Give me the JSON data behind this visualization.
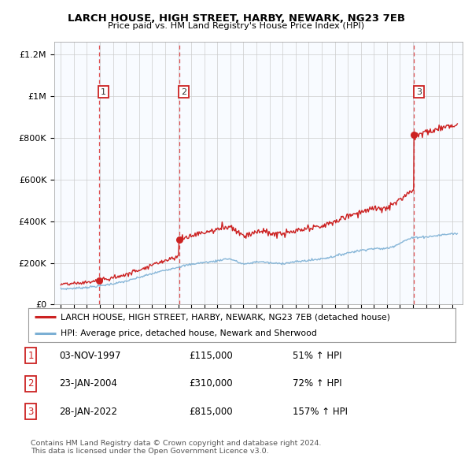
{
  "title": "LARCH HOUSE, HIGH STREET, HARBY, NEWARK, NG23 7EB",
  "subtitle": "Price paid vs. HM Land Registry's House Price Index (HPI)",
  "ylabel_ticks": [
    "£0",
    "£200K",
    "£400K",
    "£600K",
    "£800K",
    "£1M",
    "£1.2M"
  ],
  "ytick_values": [
    0,
    200000,
    400000,
    600000,
    800000,
    1000000,
    1200000
  ],
  "ylim": [
    0,
    1280000
  ],
  "sale_dates": [
    1997.92,
    2004.07,
    2022.08
  ],
  "sale_prices": [
    115000,
    310000,
    815000
  ],
  "sale_labels": [
    "1",
    "2",
    "3"
  ],
  "hpi_color": "#7bafd4",
  "price_color": "#cc2222",
  "dashed_line_color": "#dd3333",
  "shade_color": "#ddeeff",
  "legend_label_price": "LARCH HOUSE, HIGH STREET, HARBY, NEWARK, NG23 7EB (detached house)",
  "legend_label_hpi": "HPI: Average price, detached house, Newark and Sherwood",
  "table_rows": [
    {
      "num": "1",
      "date": "03-NOV-1997",
      "price": "£115,000",
      "pct": "51% ↑ HPI"
    },
    {
      "num": "2",
      "date": "23-JAN-2004",
      "price": "£310,000",
      "pct": "72% ↑ HPI"
    },
    {
      "num": "3",
      "date": "28-JAN-2022",
      "price": "£815,000",
      "pct": "157% ↑ HPI"
    }
  ],
  "footer": "Contains HM Land Registry data © Crown copyright and database right 2024.\nThis data is licensed under the Open Government Licence v3.0.",
  "background_color": "#ffffff",
  "grid_color": "#cccccc"
}
